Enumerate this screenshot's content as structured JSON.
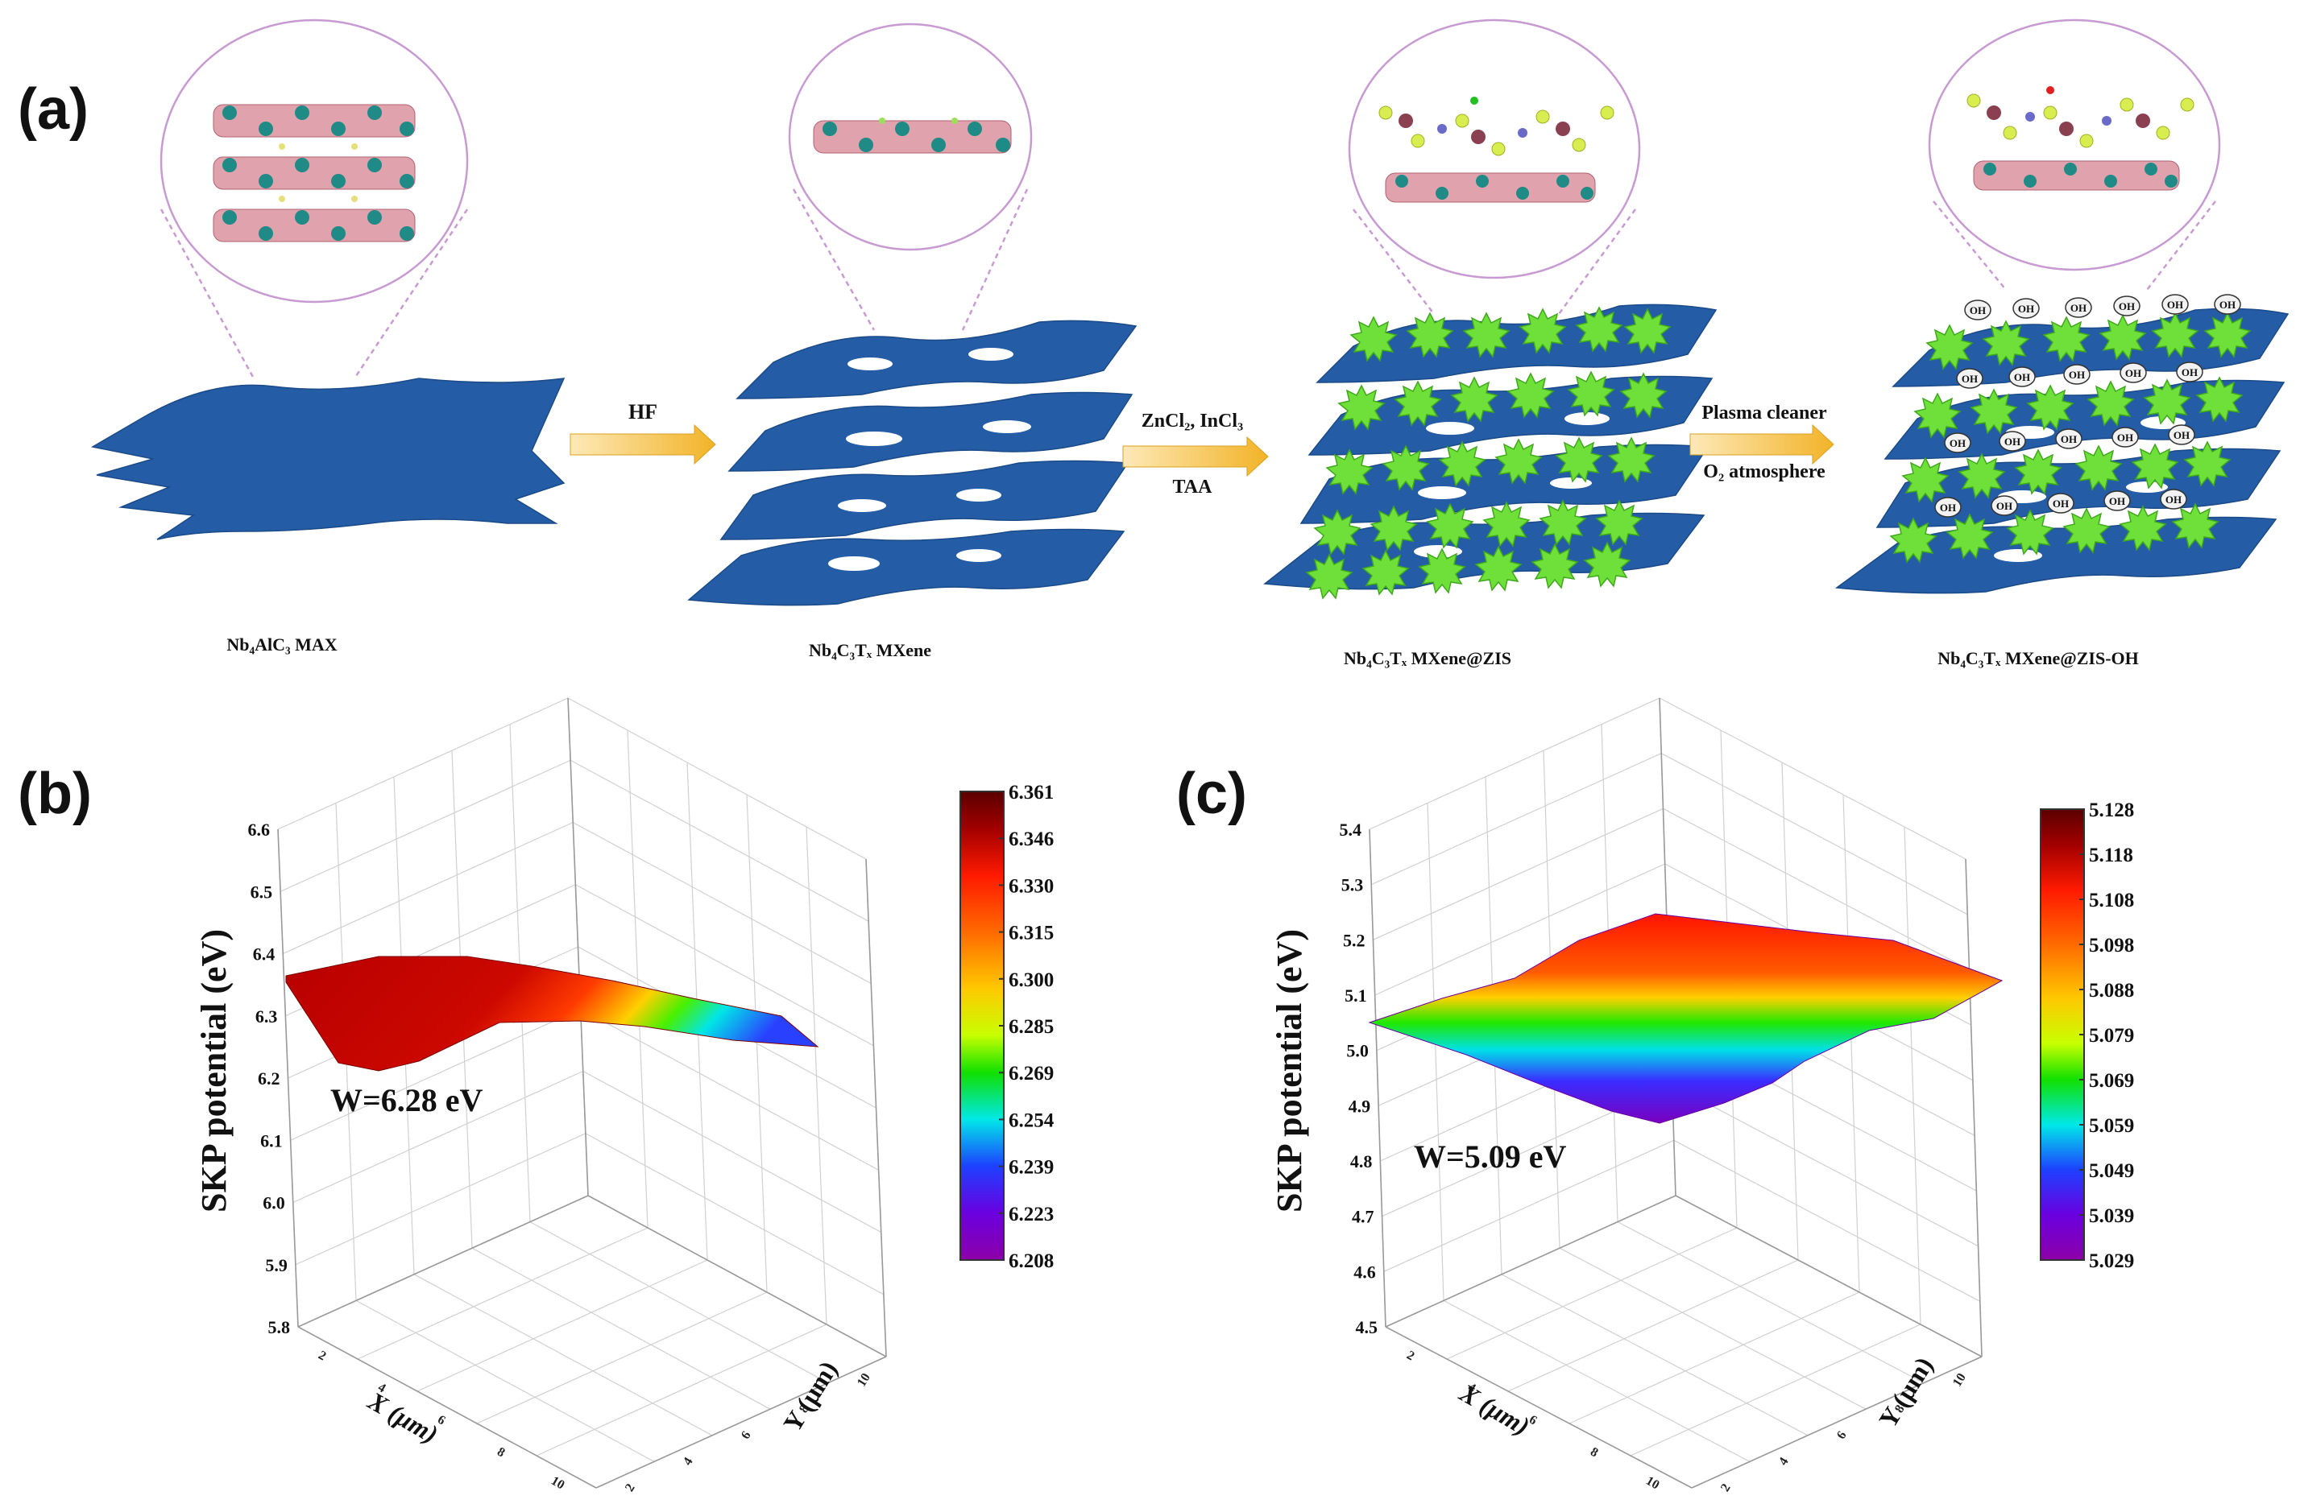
{
  "panel_a": {
    "label": "(a)",
    "stages": [
      {
        "label": "Nb₄AlC₃ MAX"
      },
      {
        "label": "Nb₄C₃Tₓ MXene"
      },
      {
        "label": "Nb₄C₃Tₓ MXene@ZIS"
      },
      {
        "label": "Nb₄C₃Tₓ MXene@ZIS-OH"
      }
    ],
    "arrows": [
      {
        "top": "HF",
        "bottom": ""
      },
      {
        "top": "ZnCl₂, InCl₃",
        "bottom": "TAA"
      },
      {
        "top": "Plasma cleaner",
        "bottom": "O₂ atmosphere"
      }
    ],
    "oh_label": "OH"
  },
  "chart_data": [
    {
      "panel": "(b)",
      "type": "surface",
      "title": "",
      "zlabel": "SKP potential (eV)",
      "xlabel": "X (μm)",
      "ylabel": "Y (μm)",
      "zlim": [
        5.8,
        6.6
      ],
      "z_ticks": [
        "5.8",
        "5.9",
        "6.0",
        "6.1",
        "6.2",
        "6.3",
        "6.4",
        "6.5",
        "6.6"
      ],
      "x_ticks": [
        "2",
        "4",
        "6",
        "8",
        "10"
      ],
      "y_ticks": [
        "2",
        "4",
        "6",
        "8",
        "10"
      ],
      "annotation": "W=6.28 eV",
      "work_function": 6.28,
      "colorbar_ticks": [
        "6.361",
        "6.346",
        "6.330",
        "6.315",
        "6.300",
        "6.285",
        "6.269",
        "6.254",
        "6.239",
        "6.223",
        "6.208"
      ],
      "surface_range": [
        6.208,
        6.361
      ]
    },
    {
      "panel": "(c)",
      "type": "surface",
      "title": "",
      "zlabel": "SKP potential (eV)",
      "xlabel": "X (μm)",
      "ylabel": "Y (μm)",
      "zlim": [
        4.5,
        5.4
      ],
      "z_ticks": [
        "4.5",
        "4.6",
        "4.7",
        "4.8",
        "4.9",
        "5.0",
        "5.1",
        "5.2",
        "5.3",
        "5.4"
      ],
      "x_ticks": [
        "2",
        "4",
        "6",
        "8",
        "10"
      ],
      "y_ticks": [
        "2",
        "4",
        "6",
        "8",
        "10"
      ],
      "annotation": "W=5.09 eV",
      "work_function": 5.09,
      "colorbar_ticks": [
        "5.128",
        "5.118",
        "5.108",
        "5.098",
        "5.088",
        "5.079",
        "5.069",
        "5.059",
        "5.049",
        "5.039",
        "5.029"
      ],
      "surface_range": [
        5.029,
        5.128
      ]
    }
  ],
  "colors": {
    "sheet": "#245da6",
    "particle": "#6fe03a",
    "zoom_circle": "#c79bd2",
    "arrow": "#f2b327"
  }
}
